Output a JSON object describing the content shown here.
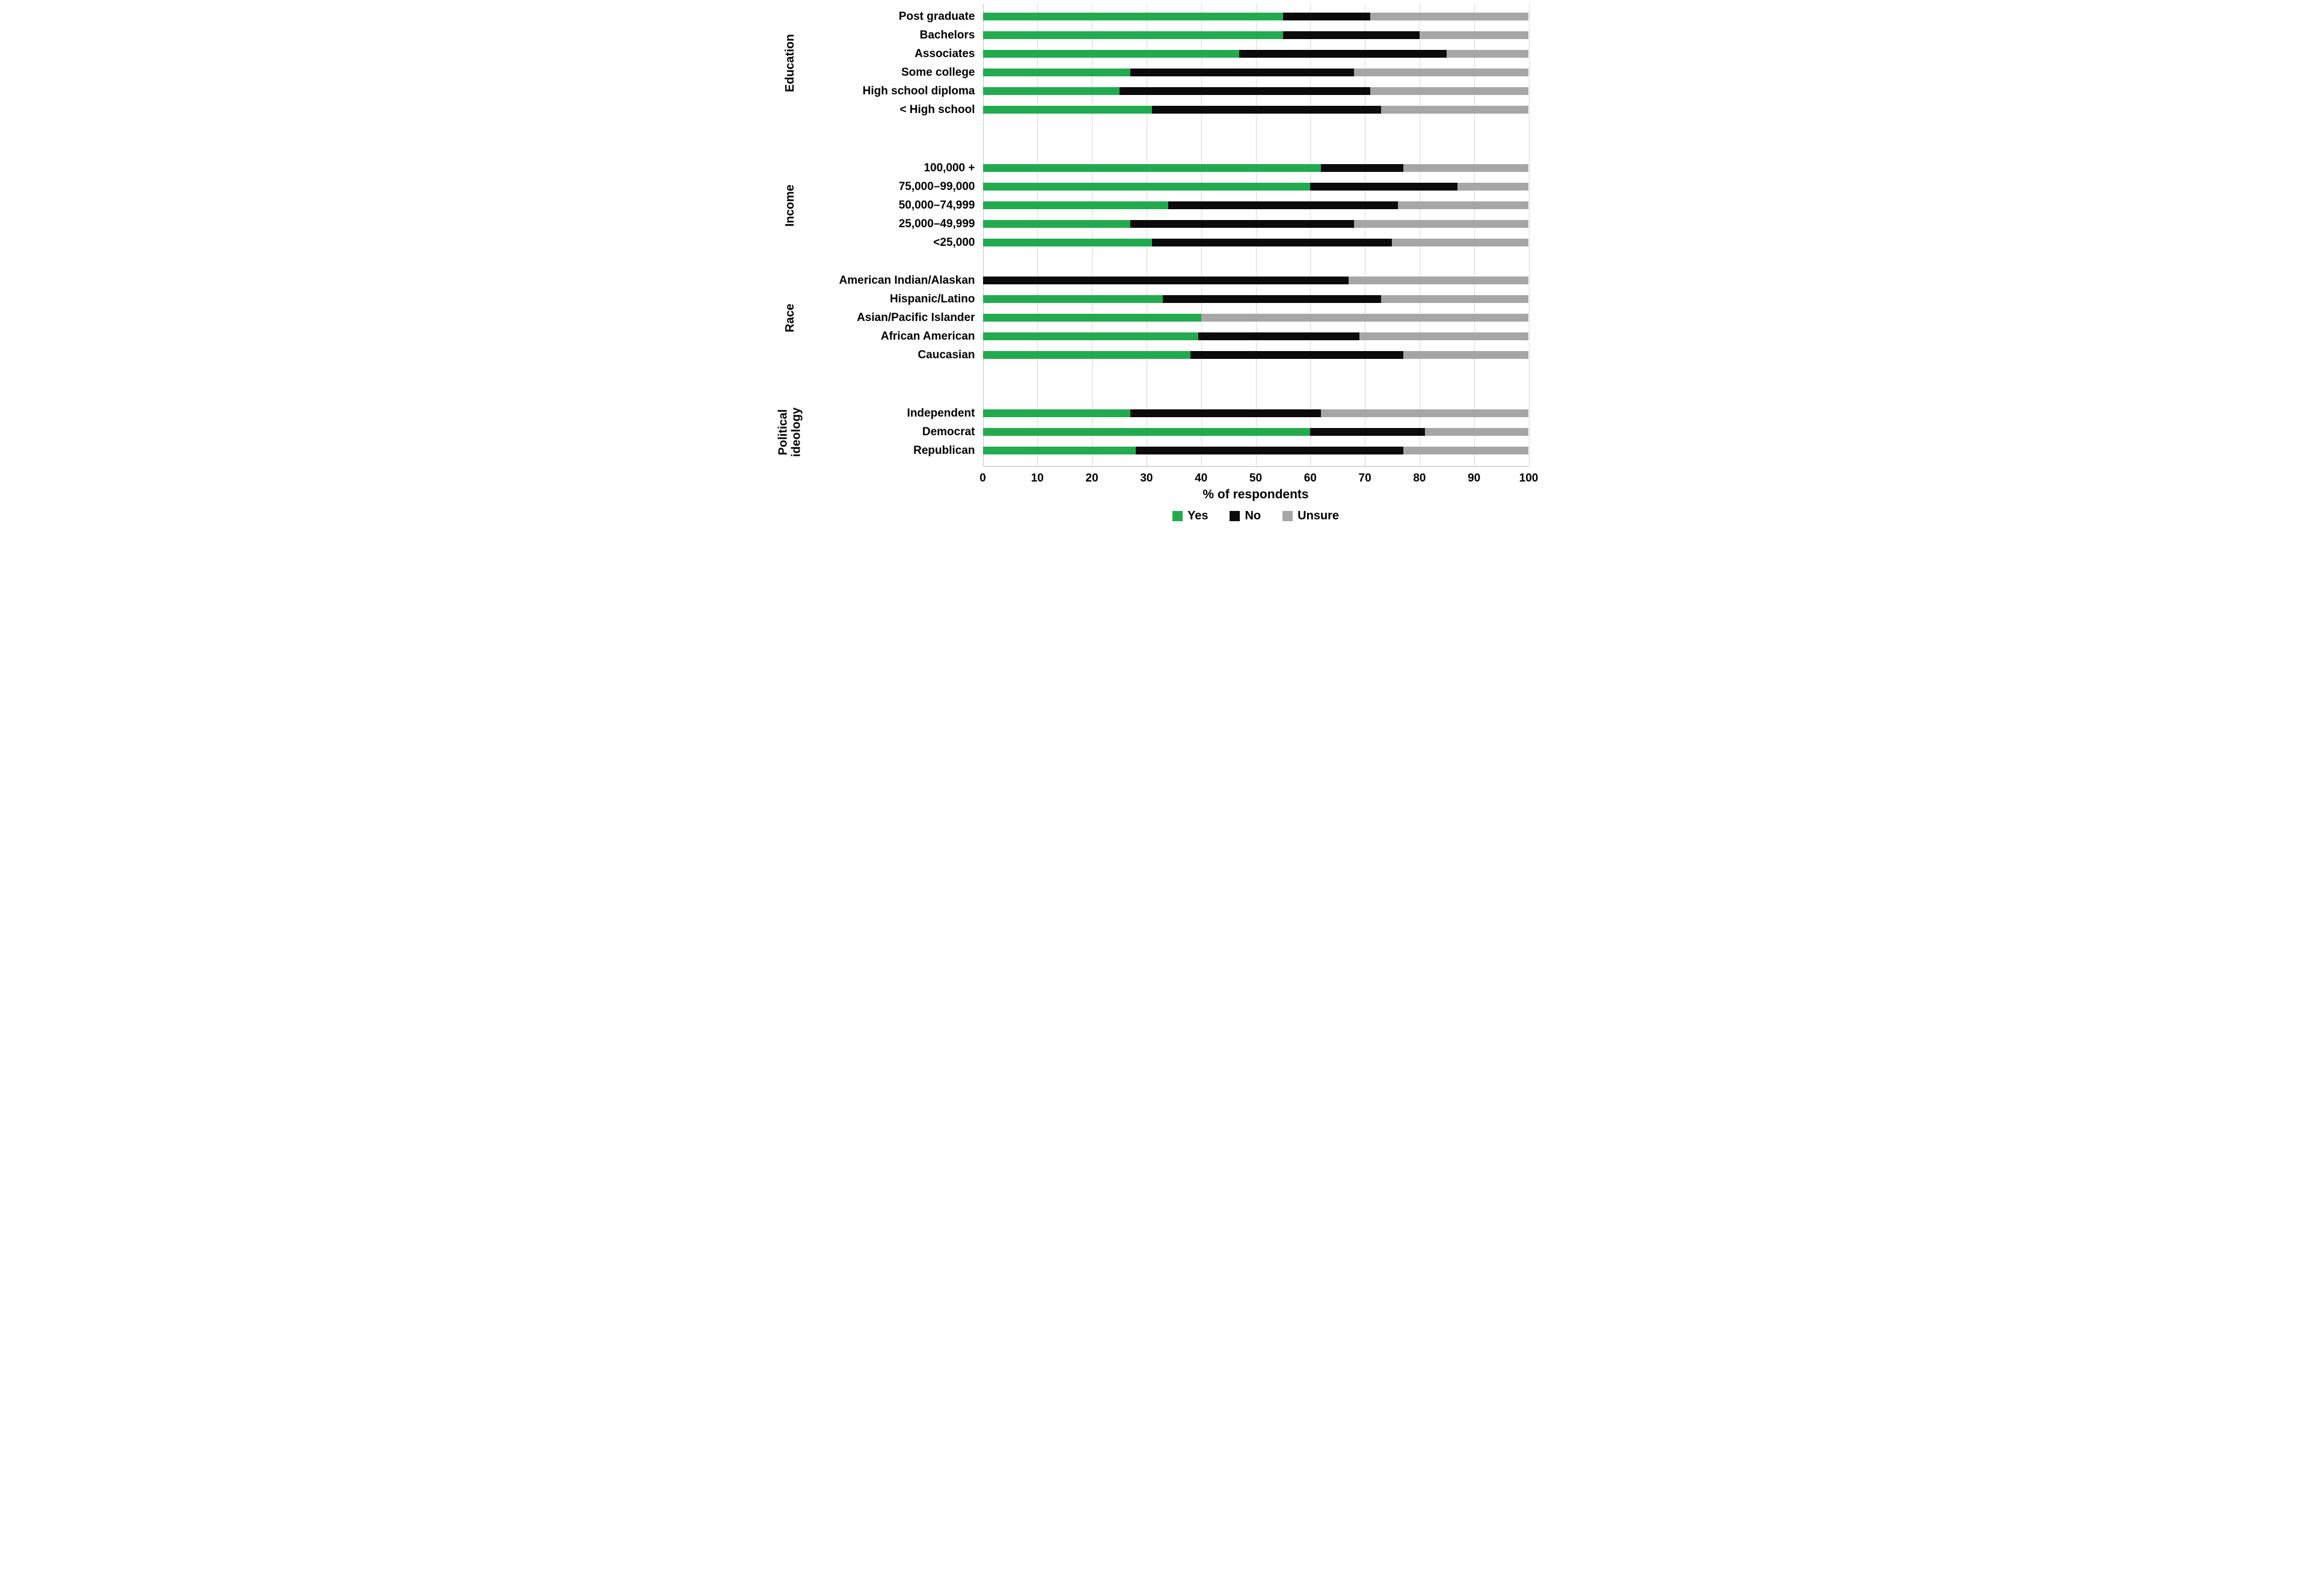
{
  "chart_data": {
    "type": "bar",
    "orientation": "horizontal",
    "stacked": true,
    "title": "",
    "xlabel": "% of respondents",
    "xlim": [
      0,
      100
    ],
    "xticks": [
      "0",
      "10",
      "20",
      "30",
      "40",
      "50",
      "60",
      "70",
      "80",
      "90",
      "100"
    ],
    "grid": "vertical-lines-on",
    "legend": [
      "Yes",
      "No",
      "Unsure"
    ],
    "legend_position": "bottom-center",
    "colors": {
      "yes": "#22ab4e",
      "no": "#0b0b0b",
      "unsure": "#a6a6a6",
      "gridline": "#d9d9d9"
    },
    "groups": [
      {
        "label": "Education",
        "rows": [
          {
            "label": "Post graduate",
            "yes": 55,
            "no": 16,
            "unsure": 29
          },
          {
            "label": "Bachelors",
            "yes": 55,
            "no": 25,
            "unsure": 20
          },
          {
            "label": "Associates",
            "yes": 47,
            "no": 38,
            "unsure": 15
          },
          {
            "label": "Some college",
            "yes": 27,
            "no": 41,
            "unsure": 32
          },
          {
            "label": "High school diploma",
            "yes": 25,
            "no": 46,
            "unsure": 29
          },
          {
            "label": "< High school",
            "yes": 31,
            "no": 42,
            "unsure": 27
          }
        ]
      },
      {
        "label": "Income",
        "rows": [
          {
            "label": "100,000 +",
            "yes": 62,
            "no": 15,
            "unsure": 23
          },
          {
            "label": "75,000–99,000",
            "yes": 60,
            "no": 27,
            "unsure": 13
          },
          {
            "label": "50,000–74,999",
            "yes": 34,
            "no": 42,
            "unsure": 24
          },
          {
            "label": "25,000–49,999",
            "yes": 27,
            "no": 41,
            "unsure": 32
          },
          {
            "label": "<25,000",
            "yes": 31,
            "no": 44,
            "unsure": 25
          }
        ]
      },
      {
        "label": "Race",
        "rows": [
          {
            "label": "American Indian/Alaskan",
            "yes": 0,
            "no": 67,
            "unsure": 33
          },
          {
            "label": "Hispanic/Latino",
            "yes": 33,
            "no": 40,
            "unsure": 27
          },
          {
            "label": "Asian/Pacific Islander",
            "yes": 40,
            "no": 0,
            "unsure": 60
          },
          {
            "label": "African American",
            "yes": 39.5,
            "no": 29.5,
            "unsure": 31
          },
          {
            "label": "Caucasian",
            "yes": 38,
            "no": 39,
            "unsure": 23
          }
        ]
      },
      {
        "label": "Political ideology",
        "rows": [
          {
            "label": "Independent",
            "yes": 27,
            "no": 35,
            "unsure": 38
          },
          {
            "label": "Democrat",
            "yes": 60,
            "no": 21,
            "unsure": 19
          },
          {
            "label": "Republican",
            "yes": 28,
            "no": 49,
            "unsure": 23
          }
        ]
      }
    ]
  }
}
